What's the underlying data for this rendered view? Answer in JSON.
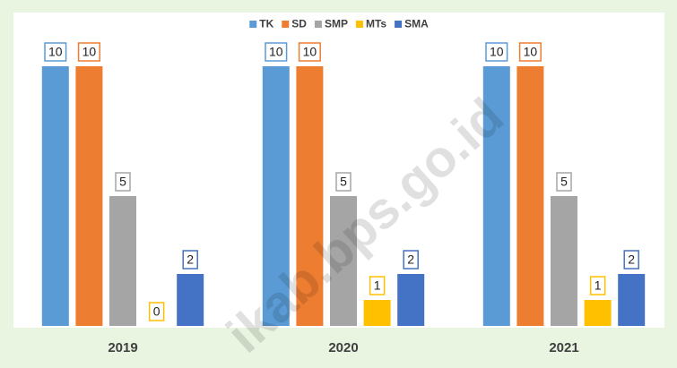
{
  "chart_data": {
    "type": "bar",
    "categories": [
      "2019",
      "2020",
      "2021"
    ],
    "series": [
      {
        "name": "TK",
        "color": "#5b9bd5",
        "values": [
          10,
          10,
          10
        ]
      },
      {
        "name": "SD",
        "color": "#ed7d31",
        "values": [
          10,
          10,
          10
        ]
      },
      {
        "name": "SMP",
        "color": "#a5a5a5",
        "values": [
          5,
          5,
          5
        ]
      },
      {
        "name": "MTs",
        "color": "#ffc000",
        "values": [
          0,
          1,
          1
        ]
      },
      {
        "name": "SMA",
        "color": "#4472c4",
        "values": [
          2,
          2,
          2
        ]
      }
    ],
    "legend": "top",
    "watermark": "ikab.bps.go.id"
  }
}
